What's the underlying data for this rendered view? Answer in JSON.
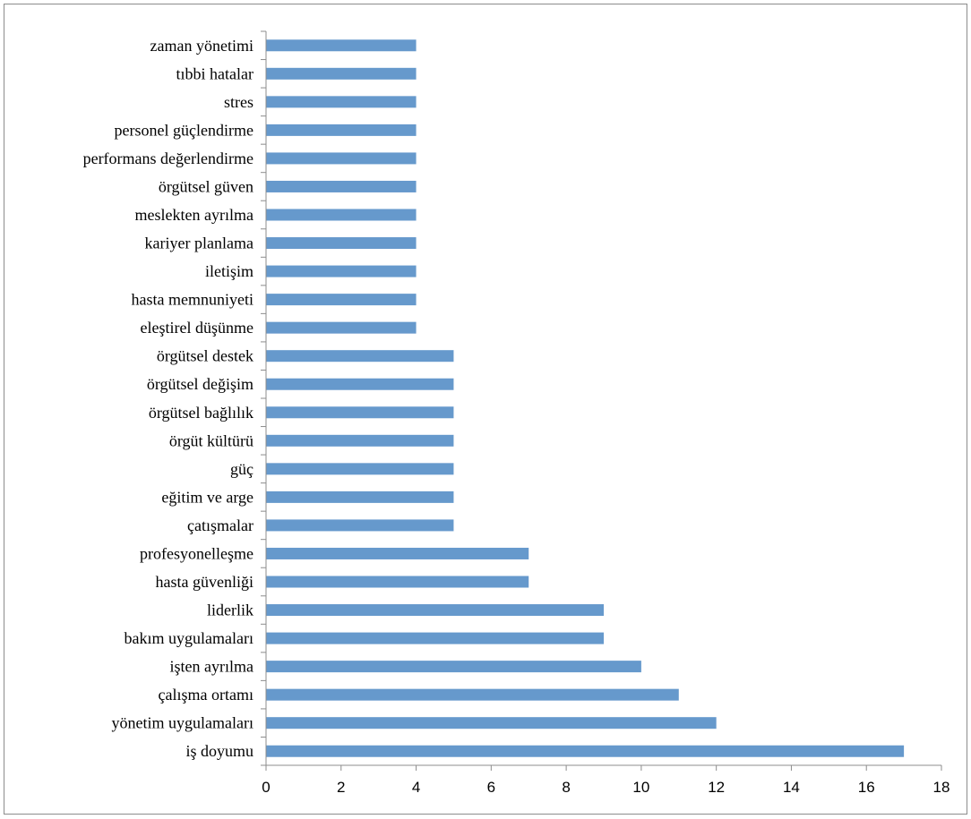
{
  "chart_data": {
    "type": "bar",
    "orientation": "horizontal",
    "categories": [
      "zaman yönetimi",
      "tıbbi hatalar",
      "stres",
      "personel güçlendirme",
      "performans değerlendirme",
      "örgütsel güven ",
      "meslekten ayrılma",
      "kariyer planlama",
      "iletişim",
      "hasta memnuniyeti",
      "eleştirel düşünme",
      "örgütsel destek",
      "örgütsel değişim",
      "örgütsel bağlılık",
      "örgüt kültürü",
      "güç",
      "eğitim ve arge",
      "çatışmalar",
      "profesyonelleşme",
      "hasta güvenliği",
      "liderlik",
      "bakım uygulamaları",
      "işten ayrılma",
      "çalışma ortamı",
      "yönetim uygulamaları",
      "iş doyumu"
    ],
    "values": [
      4,
      4,
      4,
      4,
      4,
      4,
      4,
      4,
      4,
      4,
      4,
      5,
      5,
      5,
      5,
      5,
      5,
      5,
      7,
      7,
      9,
      9,
      10,
      11,
      12,
      17
    ],
    "xlim": [
      0,
      18
    ],
    "xticks": [
      0,
      2,
      4,
      6,
      8,
      10,
      12,
      14,
      16,
      18
    ],
    "bar_color": "#6699cc",
    "grid": false,
    "legend": "none",
    "title": "",
    "xlabel": "",
    "ylabel": ""
  }
}
